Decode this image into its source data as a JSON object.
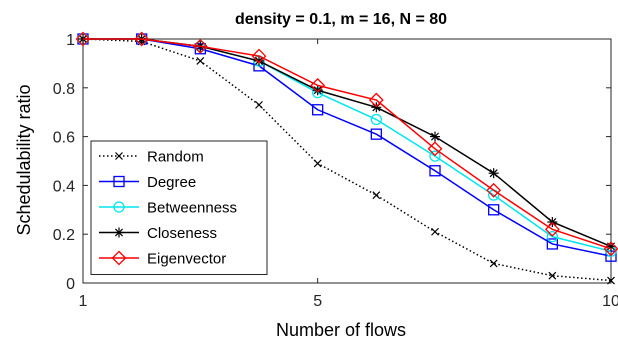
{
  "chart_data": {
    "type": "line",
    "title": "density = 0.1, m = 16, N = 80",
    "xlabel": "Number of flows",
    "ylabel": "Schedulability ratio",
    "xlim": [
      1,
      10
    ],
    "ylim": [
      0,
      1
    ],
    "xticks": [
      1,
      5,
      10
    ],
    "xtick_labels": [
      "1",
      "5",
      "10"
    ],
    "yticks": [
      0,
      0.2,
      0.4,
      0.6,
      0.8,
      1
    ],
    "ytick_labels": [
      "0",
      "0.2",
      "0.4",
      "0.6",
      "0.8",
      "1"
    ],
    "grid": false,
    "legend_position": "bottom-left",
    "x": [
      1,
      2,
      3,
      4,
      5,
      6,
      7,
      8,
      9,
      10
    ],
    "series": [
      {
        "name": "Random",
        "color": "#000000",
        "marker": "x",
        "dash": "dotted",
        "values": [
          1,
          0.99,
          0.91,
          0.73,
          0.49,
          0.36,
          0.21,
          0.08,
          0.03,
          0.01
        ]
      },
      {
        "name": "Degree",
        "color": "#0000ff",
        "marker": "square",
        "dash": "solid",
        "values": [
          1,
          1,
          0.96,
          0.89,
          0.71,
          0.61,
          0.46,
          0.3,
          0.16,
          0.11
        ]
      },
      {
        "name": "Betweenness",
        "color": "#00e5ee",
        "marker": "circle",
        "dash": "solid",
        "values": [
          1,
          1,
          0.97,
          0.91,
          0.78,
          0.67,
          0.52,
          0.36,
          0.19,
          0.13
        ]
      },
      {
        "name": "Closeness",
        "color": "#000000",
        "marker": "asterisk",
        "dash": "solid",
        "values": [
          1,
          1,
          0.97,
          0.91,
          0.79,
          0.72,
          0.6,
          0.45,
          0.25,
          0.15
        ]
      },
      {
        "name": "Eigenvector",
        "color": "#ff0000",
        "marker": "diamond",
        "dash": "solid",
        "values": [
          1,
          1,
          0.97,
          0.93,
          0.81,
          0.75,
          0.55,
          0.38,
          0.22,
          0.14
        ]
      }
    ]
  }
}
